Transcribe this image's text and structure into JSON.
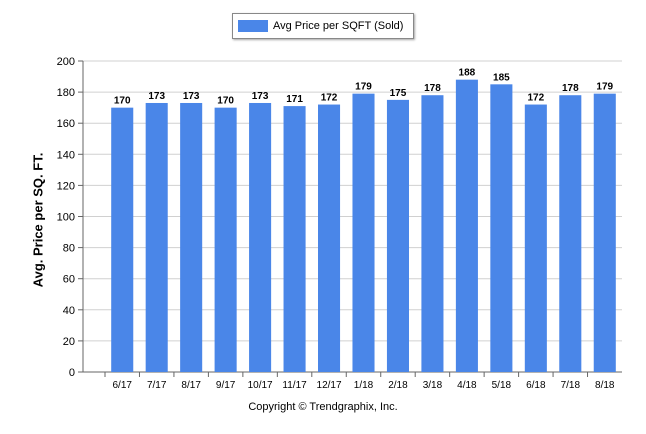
{
  "chart_data": {
    "type": "bar",
    "categories": [
      "6/17",
      "7/17",
      "8/17",
      "9/17",
      "10/17",
      "11/17",
      "12/17",
      "1/18",
      "2/18",
      "3/18",
      "4/18",
      "5/18",
      "6/18",
      "7/18",
      "8/18"
    ],
    "series": [
      {
        "name": "Avg Price per SQFT (Sold)",
        "values": [
          170,
          173,
          173,
          170,
          173,
          171,
          172,
          179,
          175,
          178,
          188,
          185,
          172,
          178,
          179
        ]
      }
    ],
    "ylabel": "Avg. Price per SQ. FT.",
    "xlabel": "",
    "ylim": [
      0,
      200
    ],
    "yticks": [
      0,
      20,
      40,
      60,
      80,
      100,
      120,
      140,
      160,
      180,
      200
    ],
    "grid": true,
    "legend": "top-center",
    "bar_color": "#4a86e8"
  },
  "footer": {
    "copyright": "Copyright © Trendgraphix, Inc."
  }
}
